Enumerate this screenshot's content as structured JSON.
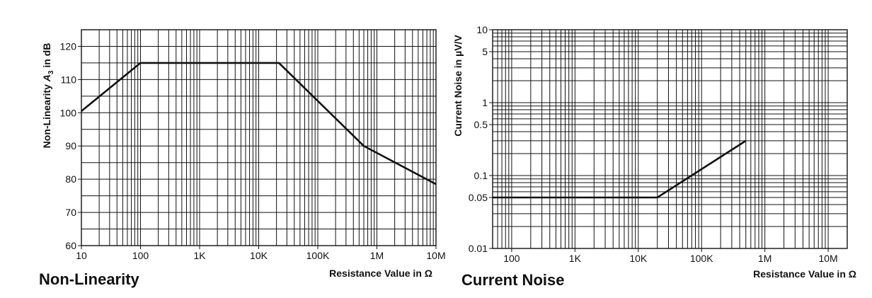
{
  "chart_data": [
    {
      "type": "line",
      "title": "Non-Linearity",
      "xlabel": "Resistance Value in Ω",
      "ylabel_parts": {
        "prefix": "Non-Linearity ",
        "symbol": "A",
        "subscript": "3",
        "suffix": " in dB"
      },
      "x_scale": "log",
      "y_scale": "linear",
      "xlim": [
        10,
        10000000
      ],
      "ylim": [
        60,
        125
      ],
      "grid": true,
      "x_ticks": [
        {
          "value": 10,
          "label": "10"
        },
        {
          "value": 100,
          "label": "100"
        },
        {
          "value": 1000,
          "label": "1K"
        },
        {
          "value": 10000,
          "label": "10K"
        },
        {
          "value": 100000,
          "label": "100K"
        },
        {
          "value": 1000000,
          "label": "1M"
        },
        {
          "value": 10000000,
          "label": "10M"
        }
      ],
      "y_ticks": [
        {
          "value": 60,
          "label": "60"
        },
        {
          "value": 70,
          "label": "70"
        },
        {
          "value": 80,
          "label": "80"
        },
        {
          "value": 90,
          "label": "90"
        },
        {
          "value": 100,
          "label": "100"
        },
        {
          "value": 110,
          "label": "110"
        },
        {
          "value": 120,
          "label": "120"
        }
      ],
      "y_grid_values": [
        60,
        65,
        70,
        75,
        80,
        85,
        90,
        95,
        100,
        105,
        110,
        115,
        120,
        125
      ],
      "series": [
        {
          "x": [
            10,
            100,
            22000,
            600000,
            10000000
          ],
          "y": [
            100.5,
            115,
            115,
            90,
            78.5
          ]
        }
      ]
    },
    {
      "type": "line",
      "title": "Current Noise",
      "xlabel": "Resistance Value in Ω",
      "ylabel": "Current Noise in µV/V",
      "x_scale": "log",
      "y_scale": "log",
      "xlim": [
        50,
        20000000
      ],
      "ylim": [
        0.01,
        10
      ],
      "grid": true,
      "x_ticks": [
        {
          "value": 100,
          "label": "100"
        },
        {
          "value": 1000,
          "label": "1K"
        },
        {
          "value": 10000,
          "label": "10K"
        },
        {
          "value": 100000,
          "label": "100K"
        },
        {
          "value": 1000000,
          "label": "1M"
        },
        {
          "value": 10000000,
          "label": "10M"
        }
      ],
      "y_ticks": [
        {
          "value": 0.01,
          "label": "0.01"
        },
        {
          "value": 0.05,
          "label": "0.05"
        },
        {
          "value": 0.1,
          "label": "0.1"
        },
        {
          "value": 0.5,
          "label": "0.5"
        },
        {
          "value": 1,
          "label": "1"
        },
        {
          "value": 5,
          "label": "5"
        },
        {
          "value": 10,
          "label": "10"
        }
      ],
      "series": [
        {
          "x": [
            50,
            20000,
            500000
          ],
          "y": [
            0.05,
            0.05,
            0.3
          ]
        }
      ]
    }
  ]
}
